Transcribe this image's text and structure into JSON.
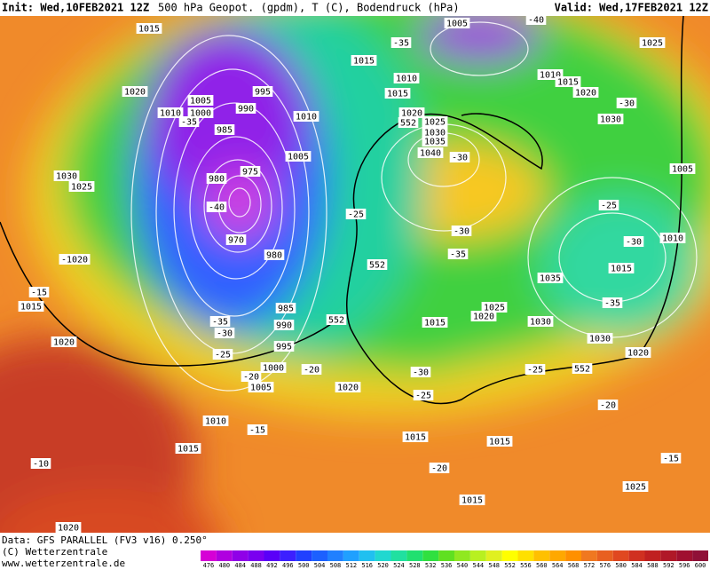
{
  "header": {
    "init": "Init: Wed,10FEB2021 12Z",
    "title": "500 hPa Geopot. (gpdm), T (C), Bodendruck (hPa)",
    "valid": "Valid: Wed,17FEB2021 12Z"
  },
  "map": {
    "labels": [
      "1015",
      "1005",
      "-40",
      "-35",
      "1015",
      "1010",
      "1015",
      "1010",
      "1015",
      "1025",
      "1020",
      "-30",
      "1030",
      "1020",
      "1005",
      "995",
      "1010",
      "1000",
      "990",
      "-35",
      "1010",
      "985",
      "1020",
      "552",
      "1025",
      "1030",
      "1035",
      "1040",
      "-30",
      "1005",
      "975",
      "980",
      "1030",
      "1025",
      "-40",
      "-25",
      "-30",
      "-25",
      "-30",
      "1010",
      "1005",
      "970",
      "980",
      "-1020",
      "-35",
      "552",
      "1015",
      "1035",
      "-15",
      "1015",
      "985",
      "990",
      "552",
      "-35",
      "-30",
      "1025",
      "1020",
      "1015",
      "1030",
      "-35",
      "1030",
      "1020",
      "1020",
      "995",
      "-25",
      "1000",
      "-20",
      "1005",
      "-20",
      "-30",
      "1020",
      "-25",
      "552",
      "-25",
      "-20",
      "1010",
      "-15",
      "1015",
      "1015",
      "1015",
      "-20",
      "-10",
      "1025",
      "-15",
      "1015",
      "1020"
    ]
  },
  "footer": {
    "data": "Data: GFS PARALLEL (FV3 v16) 0.250°",
    "copyright": "(C) Wetterzentrale",
    "url": "www.wetterzentrale.de"
  },
  "colorbar": {
    "ticks": [
      476,
      480,
      484,
      488,
      492,
      496,
      500,
      504,
      508,
      512,
      516,
      520,
      524,
      528,
      532,
      536,
      540,
      544,
      548,
      552,
      556,
      560,
      564,
      568,
      572,
      576,
      580,
      584,
      588,
      592,
      596,
      600
    ],
    "colors": [
      "#d600d6",
      "#b000e0",
      "#9000e8",
      "#7a00f0",
      "#5a00f8",
      "#3c20ff",
      "#2040ff",
      "#1c60ff",
      "#2080ff",
      "#20a0ff",
      "#20c0f0",
      "#20d8d0",
      "#20e0a0",
      "#20e070",
      "#30e040",
      "#60e020",
      "#90e820",
      "#b8f020",
      "#e0f020",
      "#ffff00",
      "#ffe000",
      "#ffc000",
      "#ffa800",
      "#ff9000",
      "#f07820",
      "#e86020",
      "#e04820",
      "#d03020",
      "#c02020",
      "#b01828",
      "#a01030",
      "#901038"
    ]
  }
}
